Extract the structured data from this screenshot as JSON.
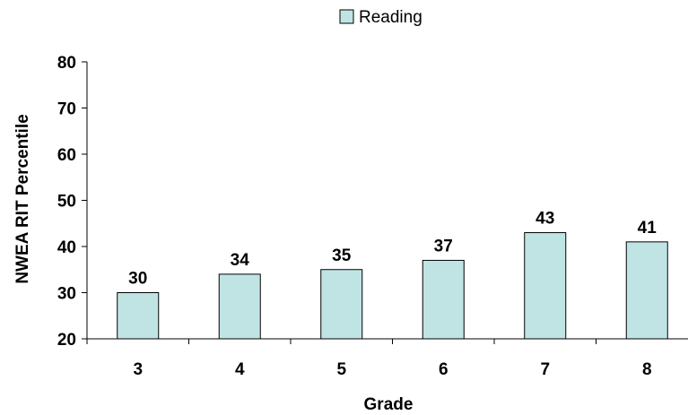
{
  "chart_data": {
    "type": "bar",
    "categories": [
      "3",
      "4",
      "5",
      "6",
      "7",
      "8"
    ],
    "series": [
      {
        "name": "Reading",
        "values": [
          30,
          34,
          35,
          37,
          43,
          41
        ]
      }
    ],
    "data_labels": [
      "30",
      "34",
      "35",
      "37",
      "43",
      "41"
    ],
    "xlabel": "Grade",
    "ylabel": "NWEA RIT Percentile",
    "ylim": [
      20,
      80
    ],
    "yticks": [
      "20",
      "30",
      "40",
      "50",
      "60",
      "70",
      "80"
    ],
    "grid": false,
    "legend_position": "top-center",
    "bar_color": "#c0e4e4",
    "bar_edge_color": "#000000"
  }
}
